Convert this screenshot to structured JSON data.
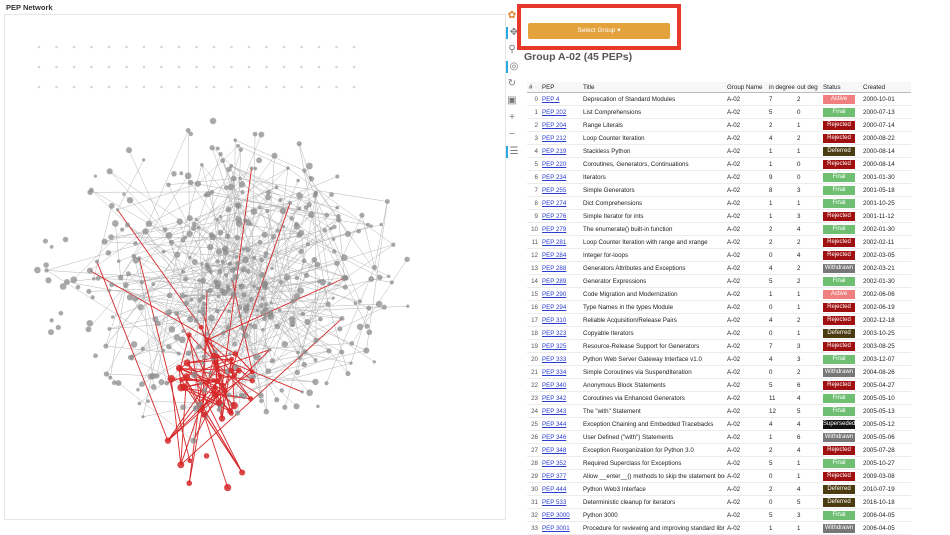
{
  "network": {
    "title": "PEP Network",
    "highlight_color": "#d62728",
    "edge_color": "#b5b5b5",
    "node_color": "#8c8c8c"
  },
  "toolbar": {
    "icons": [
      "logo-icon",
      "pan-icon",
      "box-zoom-icon",
      "wheel-zoom-icon",
      "reset-icon",
      "save-icon",
      "zoom-in-icon",
      "zoom-out-icon",
      "hover-icon"
    ]
  },
  "select": {
    "label": "Select Group ▾"
  },
  "group": {
    "title": "Group A-02 (45 PEPs)"
  },
  "table": {
    "columns": [
      "#",
      "PEP",
      "Title",
      "Group Name",
      "in degree",
      "out deg",
      "Status",
      "Created"
    ],
    "status_colors": {
      "Active": "#f08080",
      "Final": "#6fbf73",
      "Rejected": "#a01010",
      "Deferred": "#4b3b10",
      "Withdrawn": "#777777",
      "Superseded": "#111111"
    },
    "rows": [
      [
        "0",
        "PEP 4",
        "Deprecation of Standard Modules",
        "A-02",
        "7",
        "2",
        "Active",
        "2000-10-01"
      ],
      [
        "1",
        "PEP 202",
        "List Comprehensions",
        "A-02",
        "5",
        "0",
        "Final",
        "2000-07-13"
      ],
      [
        "2",
        "PEP 204",
        "Range Literals",
        "A-02",
        "2",
        "1",
        "Rejected",
        "2000-07-14"
      ],
      [
        "3",
        "PEP 212",
        "Loop Counter Iteration",
        "A-02",
        "4",
        "2",
        "Rejected",
        "2000-08-22"
      ],
      [
        "4",
        "PEP 219",
        "Stackless Python",
        "A-02",
        "1",
        "1",
        "Deferred",
        "2000-08-14"
      ],
      [
        "5",
        "PEP 220",
        "Coroutines, Generators, Continuations",
        "A-02",
        "1",
        "0",
        "Rejected",
        "2000-08-14"
      ],
      [
        "6",
        "PEP 234",
        "Iterators",
        "A-02",
        "9",
        "0",
        "Final",
        "2001-01-30"
      ],
      [
        "7",
        "PEP 255",
        "Simple Generators",
        "A-02",
        "8",
        "3",
        "Final",
        "2001-05-18"
      ],
      [
        "8",
        "PEP 274",
        "Dict Comprehensions",
        "A-02",
        "1",
        "1",
        "Final",
        "2001-10-25"
      ],
      [
        "9",
        "PEP 276",
        "Simple Iterator for ints",
        "A-02",
        "1",
        "3",
        "Rejected",
        "2001-11-12"
      ],
      [
        "10",
        "PEP 279",
        "The enumerate() built-in function",
        "A-02",
        "2",
        "4",
        "Final",
        "2002-01-30"
      ],
      [
        "11",
        "PEP 281",
        "Loop Counter Iteration with range and xrange",
        "A-02",
        "2",
        "2",
        "Rejected",
        "2002-02-11"
      ],
      [
        "12",
        "PEP 284",
        "Integer for-loops",
        "A-02",
        "0",
        "4",
        "Rejected",
        "2002-03-05"
      ],
      [
        "13",
        "PEP 288",
        "Generators Attributes and Exceptions",
        "A-02",
        "4",
        "2",
        "Withdrawn",
        "2002-03-21"
      ],
      [
        "14",
        "PEP 289",
        "Generator Expressions",
        "A-02",
        "5",
        "2",
        "Final",
        "2002-01-30"
      ],
      [
        "15",
        "PEP 290",
        "Code Migration and Modernization",
        "A-02",
        "1",
        "1",
        "Active",
        "2002-06-06"
      ],
      [
        "16",
        "PEP 294",
        "Type Names in the types Module",
        "A-02",
        "0",
        "1",
        "Rejected",
        "2002-06-19"
      ],
      [
        "17",
        "PEP 310",
        "Reliable Acquisition/Release Pairs",
        "A-02",
        "4",
        "2",
        "Rejected",
        "2002-12-18"
      ],
      [
        "18",
        "PEP 323",
        "Copyable Iterators",
        "A-02",
        "0",
        "1",
        "Deferred",
        "2003-10-25"
      ],
      [
        "19",
        "PEP 325",
        "Resource-Release Support for Generators",
        "A-02",
        "7",
        "3",
        "Rejected",
        "2003-08-25"
      ],
      [
        "20",
        "PEP 333",
        "Python Web Server Gateway Interface v1.0",
        "A-02",
        "4",
        "3",
        "Final",
        "2003-12-07"
      ],
      [
        "21",
        "PEP 334",
        "Simple Coroutines via SuspendIteration",
        "A-02",
        "0",
        "2",
        "Withdrawn",
        "2004-08-26"
      ],
      [
        "22",
        "PEP 340",
        "Anonymous Block Statements",
        "A-02",
        "5",
        "6",
        "Rejected",
        "2005-04-27"
      ],
      [
        "23",
        "PEP 342",
        "Coroutines via Enhanced Generators",
        "A-02",
        "11",
        "4",
        "Final",
        "2005-05-10"
      ],
      [
        "24",
        "PEP 343",
        "The \"with\" Statement",
        "A-02",
        "12",
        "5",
        "Final",
        "2005-05-13"
      ],
      [
        "25",
        "PEP 344",
        "Exception Chaining and Embedded Tracebacks",
        "A-02",
        "4",
        "4",
        "Superseded",
        "2005-05-12"
      ],
      [
        "26",
        "PEP 346",
        "User Defined (\"with\") Statements",
        "A-02",
        "1",
        "6",
        "Withdrawn",
        "2005-05-06"
      ],
      [
        "27",
        "PEP 348",
        "Exception Reorganization for Python 3.0",
        "A-02",
        "2",
        "4",
        "Rejected",
        "2005-07-28"
      ],
      [
        "28",
        "PEP 352",
        "Required Superclass for Exceptions",
        "A-02",
        "5",
        "1",
        "Final",
        "2005-10-27"
      ],
      [
        "29",
        "PEP 377",
        "Allow __enter__() methods to skip the statement body",
        "A-02",
        "0",
        "1",
        "Rejected",
        "2009-03-08"
      ],
      [
        "30",
        "PEP 444",
        "Python Web3 Interface",
        "A-02",
        "2",
        "4",
        "Deferred",
        "2010-07-19"
      ],
      [
        "31",
        "PEP 533",
        "Deterministic cleanup for iterators",
        "A-02",
        "0",
        "5",
        "Deferred",
        "2016-10-18"
      ],
      [
        "32",
        "PEP 3000",
        "Python 3000",
        "A-02",
        "5",
        "3",
        "Final",
        "2006-04-05"
      ],
      [
        "33",
        "PEP 3001",
        "Procedure for reviewing and improving standard library modules",
        "A-02",
        "1",
        "1",
        "Withdrawn",
        "2006-04-05"
      ]
    ]
  }
}
